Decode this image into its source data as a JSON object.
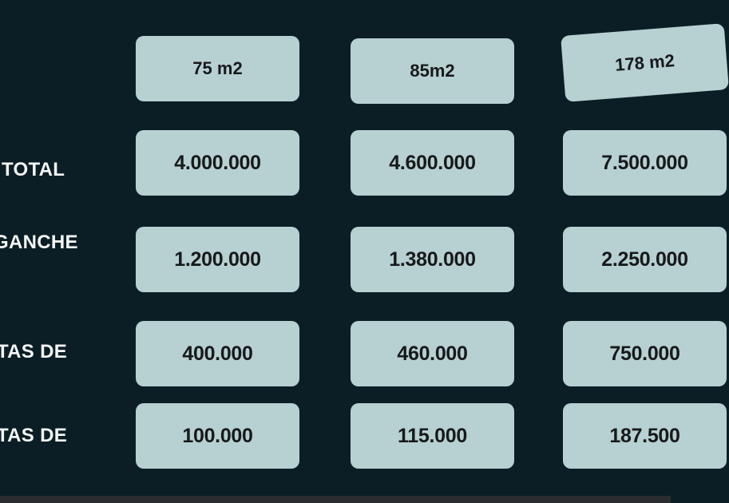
{
  "theme": {
    "background": "#0b1e25",
    "card_fill": "#b7d0d2",
    "card_text": "#17191b",
    "label_text": "#f4f6f6",
    "bottom_bar": "#2a2c2f"
  },
  "row_labels": [
    {
      "text": "TOTAL"
    },
    {
      "text": "GANCHE"
    },
    {
      "text": "TAS DE"
    },
    {
      "text": "TAS DE"
    }
  ],
  "columns": [
    {
      "header": "75 m2",
      "values": [
        "4.000.000",
        "1.200.000",
        "400.000",
        "100.000"
      ]
    },
    {
      "header": "85m2",
      "values": [
        "4.600.000",
        "1.380.000",
        "460.000",
        "115.000"
      ]
    },
    {
      "header": "178 m2",
      "values": [
        "7.500.000",
        "2.250.000",
        "750.000",
        "187.500"
      ]
    }
  ]
}
